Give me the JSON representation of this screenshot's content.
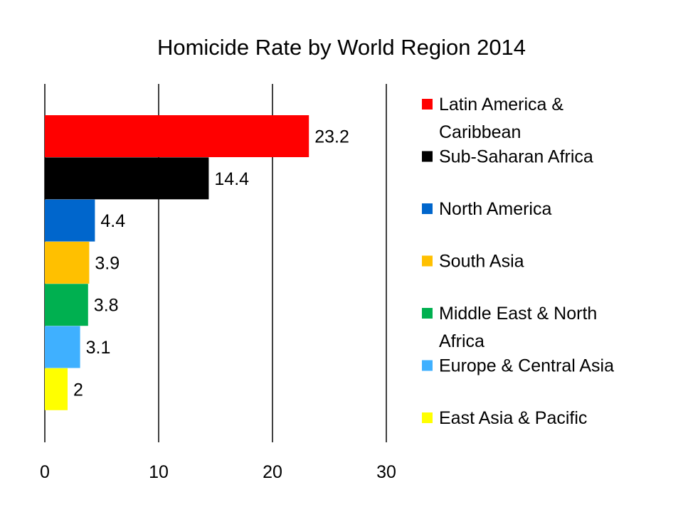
{
  "chart_data": {
    "type": "bar",
    "orientation": "horizontal",
    "title": "Homicide Rate by World Region 2014",
    "xlabel": "",
    "ylabel": "",
    "xlim": [
      0,
      30
    ],
    "ticks": [
      "0",
      "10",
      "20",
      "30"
    ],
    "grid": true,
    "legend_position": "right",
    "categories": [
      "Latin America & Caribbean",
      "Sub-Saharan Africa",
      "North America",
      "South Asia",
      "Middle East & North Africa",
      "Europe & Central Asia",
      "East Asia & Pacific"
    ],
    "legend": [
      [
        "Latin America &",
        "Caribbean"
      ],
      [
        "Sub-Saharan Africa"
      ],
      [
        "North America"
      ],
      [
        "South Asia"
      ],
      [
        "Middle East & North",
        "Africa"
      ],
      [
        "Europe & Central Asia"
      ],
      [
        "East Asia & Pacific"
      ]
    ],
    "values": [
      23.2,
      14.4,
      4.4,
      3.9,
      3.8,
      3.1,
      2
    ],
    "data_labels": [
      "23.2",
      "14.4",
      "4.4",
      "3.9",
      "3.8",
      "3.1",
      "2"
    ],
    "colors": [
      "#ff0000",
      "#000000",
      "#0066cc",
      "#ffc000",
      "#00b050",
      "#3fb0ff",
      "#ffff00"
    ]
  }
}
